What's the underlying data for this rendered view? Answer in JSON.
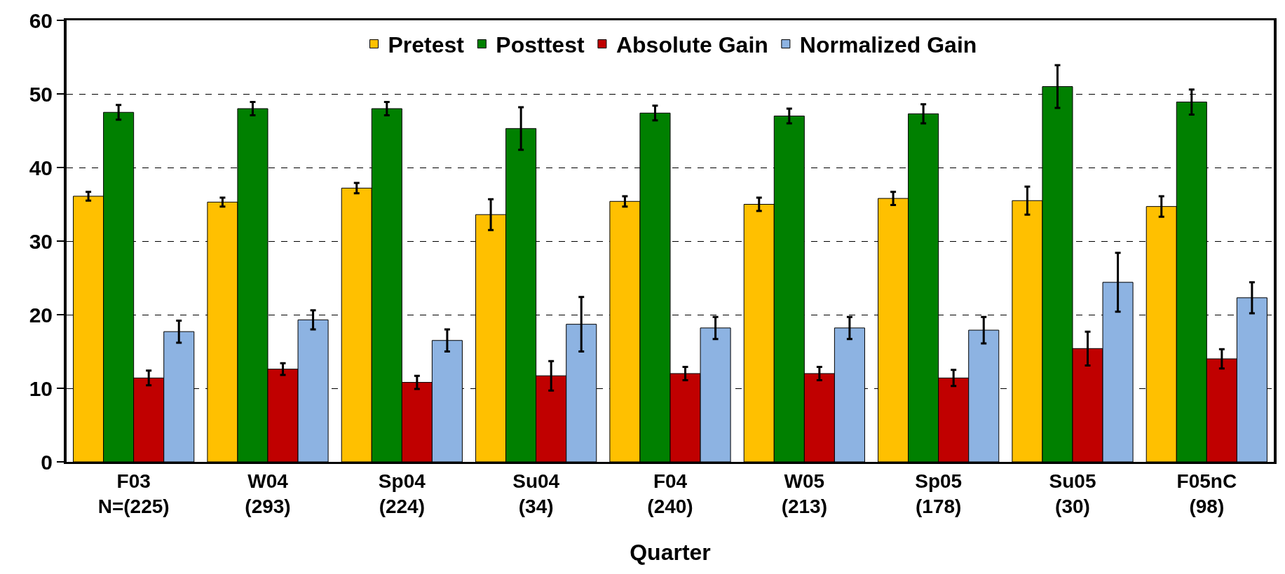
{
  "chart_data": {
    "type": "bar",
    "xlabel": "Quarter",
    "categories": [
      "F03\nN=(225)",
      "W04\n(293)",
      "Sp04\n(224)",
      "Su04\n(34)",
      "F04\n(240)",
      "W05\n(213)",
      "Sp05\n(178)",
      "Su05\n(30)",
      "F05nC\n(98)"
    ],
    "series": [
      {
        "name": "Pretest",
        "color": "#ffc000",
        "values": [
          36.1,
          35.3,
          37.2,
          33.6,
          35.4,
          35.0,
          35.8,
          35.5,
          34.7
        ],
        "errors": [
          0.6,
          0.6,
          0.7,
          2.1,
          0.7,
          0.9,
          0.9,
          1.9,
          1.4
        ]
      },
      {
        "name": "Posttest",
        "color": "#008000",
        "values": [
          47.5,
          48.0,
          48.0,
          45.3,
          47.4,
          47.0,
          47.3,
          51.0,
          48.9
        ],
        "errors": [
          1.0,
          0.9,
          0.9,
          2.9,
          1.0,
          1.0,
          1.3,
          2.9,
          1.7
        ]
      },
      {
        "name": "Absolute Gain",
        "color": "#c00000",
        "values": [
          11.4,
          12.6,
          10.8,
          11.7,
          12.0,
          12.0,
          11.4,
          15.4,
          14.0
        ],
        "errors": [
          1.0,
          0.8,
          0.9,
          2.0,
          0.9,
          0.9,
          1.1,
          2.3,
          1.3
        ]
      },
      {
        "name": "Normalized Gain",
        "color": "#8db3e2",
        "values": [
          17.7,
          19.3,
          16.5,
          18.7,
          18.2,
          18.2,
          17.9,
          24.4,
          22.3
        ],
        "errors": [
          1.5,
          1.3,
          1.5,
          3.7,
          1.5,
          1.5,
          1.8,
          4.0,
          2.1
        ]
      }
    ],
    "ylim": [
      0,
      60
    ],
    "yticks": [
      0,
      10,
      20,
      30,
      40,
      50,
      60
    ],
    "grid": "y",
    "legend": "top"
  }
}
